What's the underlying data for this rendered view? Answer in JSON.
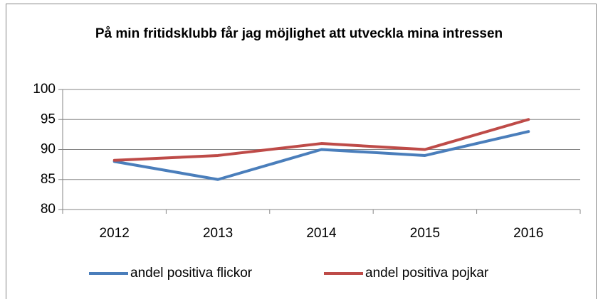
{
  "chart_data": {
    "type": "line",
    "title": "På min fritidsklubb får jag möjlighet att utveckla mina intressen",
    "categories": [
      "2012",
      "2013",
      "2014",
      "2015",
      "2016"
    ],
    "series": [
      {
        "name": "andel positiva flickor",
        "color": "#4a7ebb",
        "values": [
          88,
          85,
          90,
          89,
          93
        ]
      },
      {
        "name": "andel positiva pojkar",
        "color": "#be4b48",
        "values": [
          88.2,
          89,
          91,
          90,
          95
        ]
      }
    ],
    "ylim": [
      80,
      100
    ],
    "yticks": [
      80,
      85,
      90,
      95,
      100
    ],
    "grid": true,
    "legend": "bottom"
  }
}
